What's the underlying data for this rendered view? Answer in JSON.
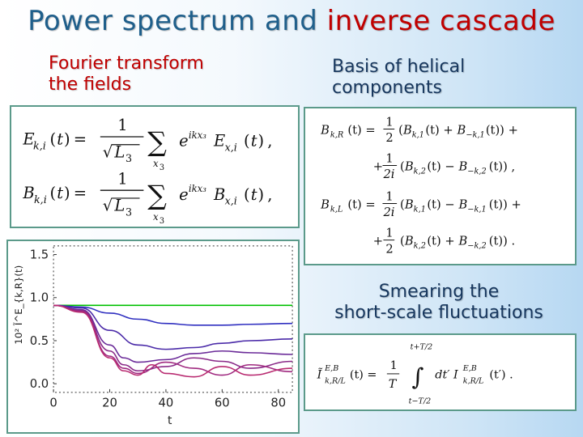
{
  "slide": {
    "title_part1": "Power spectrum and",
    "title_part2": "inverse cascade",
    "label_fourier": [
      "Fourier transform",
      "the fields"
    ],
    "label_helical": [
      "Basis of helical",
      "components"
    ],
    "label_smearing": [
      "Smearing the",
      "short-scale fluctuations"
    ]
  },
  "colors": {
    "title_blue": "#1f5f8b",
    "accent_red": "#c00000",
    "box_border": "#5b9a8a"
  },
  "chart_data": {
    "type": "line",
    "xlabel": "t",
    "ylabel": "10² Ĩ^E_{k,R}(t)",
    "xlim": [
      0,
      85
    ],
    "ylim": [
      -0.1,
      1.6
    ],
    "xticks": [
      "0",
      "20",
      "40",
      "60",
      "80"
    ],
    "yticks": [
      "0.0",
      "0.5",
      "1.0",
      "1.5"
    ],
    "series": [
      {
        "color": "#00c000",
        "x": [
          0,
          85
        ],
        "y": [
          0.91,
          0.91
        ]
      },
      {
        "color": "#3030c0",
        "x": [
          0,
          10,
          20,
          30,
          40,
          50,
          60,
          70,
          85
        ],
        "y": [
          0.91,
          0.89,
          0.82,
          0.75,
          0.7,
          0.68,
          0.68,
          0.69,
          0.7
        ]
      },
      {
        "color": "#4a2aa8",
        "x": [
          0,
          10,
          20,
          30,
          40,
          50,
          60,
          70,
          85
        ],
        "y": [
          0.91,
          0.88,
          0.62,
          0.45,
          0.4,
          0.42,
          0.47,
          0.5,
          0.52
        ]
      },
      {
        "color": "#6a2a98",
        "x": [
          0,
          10,
          20,
          25,
          30,
          40,
          50,
          60,
          70,
          85
        ],
        "y": [
          0.91,
          0.86,
          0.45,
          0.3,
          0.25,
          0.28,
          0.35,
          0.38,
          0.36,
          0.34
        ]
      },
      {
        "color": "#8a2a88",
        "x": [
          0,
          10,
          20,
          25,
          30,
          40,
          50,
          60,
          70,
          85
        ],
        "y": [
          0.91,
          0.85,
          0.38,
          0.22,
          0.15,
          0.2,
          0.3,
          0.26,
          0.18,
          0.26
        ]
      },
      {
        "color": "#a02a80",
        "x": [
          0,
          10,
          20,
          25,
          30,
          40,
          50,
          60,
          70,
          85
        ],
        "y": [
          0.91,
          0.84,
          0.32,
          0.18,
          0.12,
          0.25,
          0.18,
          0.1,
          0.22,
          0.14
        ]
      },
      {
        "color": "#b82a70",
        "x": [
          0,
          10,
          20,
          25,
          30,
          35,
          40,
          50,
          60,
          70,
          85
        ],
        "y": [
          0.91,
          0.83,
          0.3,
          0.15,
          0.1,
          0.22,
          0.12,
          0.08,
          0.2,
          0.1,
          0.18
        ]
      }
    ]
  }
}
